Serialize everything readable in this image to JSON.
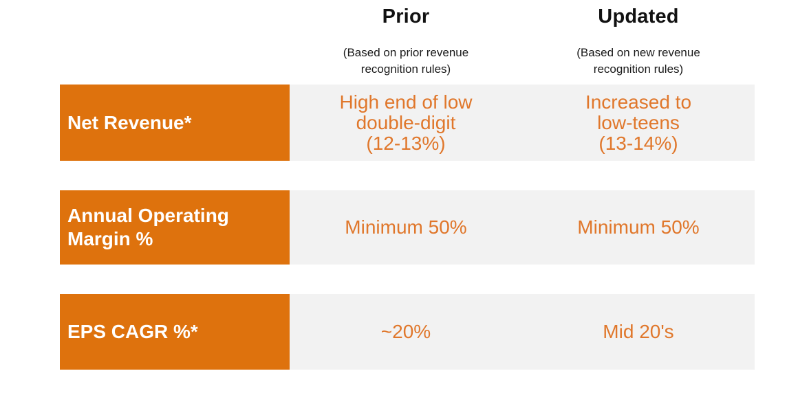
{
  "colors": {
    "label_box_orange": "#de720d",
    "value_text_orange": "#e0772b",
    "cell_background_gray": "#f2f2f2",
    "header_text": "#111111"
  },
  "table": {
    "columns": [
      {
        "label": "Prior",
        "subtitle": "(Based on prior revenue\nrecognition rules)"
      },
      {
        "label": "Updated",
        "subtitle": "(Based on new revenue\nrecognition rules)"
      }
    ],
    "rows": [
      {
        "label": "Net Revenue*",
        "prior": "High end of low\ndouble-digit\n(12-13%)",
        "updated": "Increased to\nlow-teens\n(13-14%)"
      },
      {
        "label": "Annual Operating\nMargin %",
        "prior": "Minimum 50%",
        "updated": "Minimum 50%"
      },
      {
        "label": "EPS CAGR %*",
        "prior": "~20%",
        "updated": "Mid 20's"
      }
    ]
  },
  "chart_data": {
    "type": "table",
    "title": "",
    "columns": [
      "",
      "Prior (Based on prior revenue recognition rules)",
      "Updated (Based on new revenue recognition rules)"
    ],
    "rows": [
      [
        "Net Revenue*",
        "High end of low double-digit (12-13%)",
        "Increased to low-teens (13-14%)"
      ],
      [
        "Annual Operating Margin %",
        "Minimum 50%",
        "Minimum 50%"
      ],
      [
        "EPS CAGR %*",
        "~20%",
        "Mid 20's"
      ]
    ]
  }
}
